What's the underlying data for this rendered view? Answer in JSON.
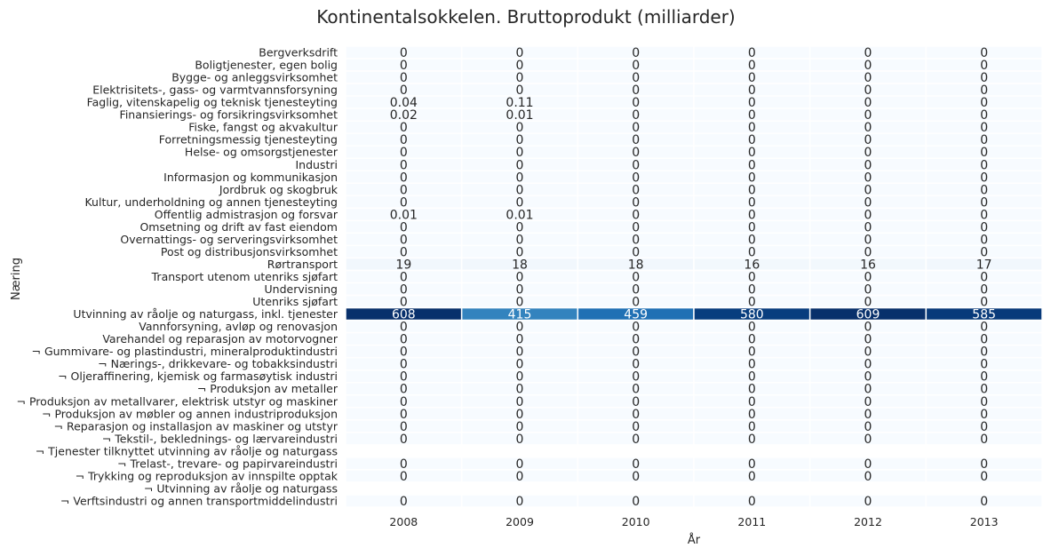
{
  "chart_data": {
    "type": "heatmap",
    "title": "Kontinentalsokkelen. Bruttoprodukt (milliarder)",
    "xlabel": "År",
    "ylabel": "Næring",
    "columns": [
      "2008",
      "2009",
      "2010",
      "2011",
      "2012",
      "2013"
    ],
    "rows": [
      {
        "label": "Bergverksdrift",
        "values": [
          "0",
          "0",
          "0",
          "0",
          "0",
          "0"
        ]
      },
      {
        "label": "Boligtjenester, egen bolig",
        "values": [
          "0",
          "0",
          "0",
          "0",
          "0",
          "0"
        ]
      },
      {
        "label": "Bygge- og anleggsvirksomhet",
        "values": [
          "0",
          "0",
          "0",
          "0",
          "0",
          "0"
        ]
      },
      {
        "label": "Elektrisitets-, gass- og varmtvannsforsyning",
        "values": [
          "0",
          "0",
          "0",
          "0",
          "0",
          "0"
        ]
      },
      {
        "label": "Faglig, vitenskapelig og teknisk tjenesteyting",
        "values": [
          "0.04",
          "0.11",
          "0",
          "0",
          "0",
          "0"
        ]
      },
      {
        "label": "Finansierings- og forsikringsvirksomhet",
        "values": [
          "0.02",
          "0.01",
          "0",
          "0",
          "0",
          "0"
        ]
      },
      {
        "label": "Fiske, fangst og akvakultur",
        "values": [
          "0",
          "0",
          "0",
          "0",
          "0",
          "0"
        ]
      },
      {
        "label": "Forretningsmessig tjenesteyting",
        "values": [
          "0",
          "0",
          "0",
          "0",
          "0",
          "0"
        ]
      },
      {
        "label": "Helse- og omsorgstjenester",
        "values": [
          "0",
          "0",
          "0",
          "0",
          "0",
          "0"
        ]
      },
      {
        "label": "Industri",
        "values": [
          "0",
          "0",
          "0",
          "0",
          "0",
          "0"
        ]
      },
      {
        "label": "Informasjon og kommunikasjon",
        "values": [
          "0",
          "0",
          "0",
          "0",
          "0",
          "0"
        ]
      },
      {
        "label": "Jordbruk og skogbruk",
        "values": [
          "0",
          "0",
          "0",
          "0",
          "0",
          "0"
        ]
      },
      {
        "label": "Kultur, underholdning og annen tjenesteyting",
        "values": [
          "0",
          "0",
          "0",
          "0",
          "0",
          "0"
        ]
      },
      {
        "label": "Offentlig admistrasjon og forsvar",
        "values": [
          "0.01",
          "0.01",
          "0",
          "0",
          "0",
          "0"
        ]
      },
      {
        "label": "Omsetning og drift av fast eiendom",
        "values": [
          "0",
          "0",
          "0",
          "0",
          "0",
          "0"
        ]
      },
      {
        "label": "Overnattings- og serveringsvirksomhet",
        "values": [
          "0",
          "0",
          "0",
          "0",
          "0",
          "0"
        ]
      },
      {
        "label": "Post og distribusjonsvirksomhet",
        "values": [
          "0",
          "0",
          "0",
          "0",
          "0",
          "0"
        ]
      },
      {
        "label": "Rørtransport",
        "values": [
          "19",
          "18",
          "18",
          "16",
          "16",
          "17"
        ]
      },
      {
        "label": "Transport utenom utenriks sjøfart",
        "values": [
          "0",
          "0",
          "0",
          "0",
          "0",
          "0"
        ]
      },
      {
        "label": "Undervisning",
        "values": [
          "0",
          "0",
          "0",
          "0",
          "0",
          "0"
        ]
      },
      {
        "label": "Utenriks sjøfart",
        "values": [
          "0",
          "0",
          "0",
          "0",
          "0",
          "0"
        ]
      },
      {
        "label": "Utvinning av råolje og naturgass, inkl. tjenester",
        "values": [
          "608",
          "415",
          "459",
          "580",
          "609",
          "585"
        ]
      },
      {
        "label": "Vannforsyning, avløp og renovasjon",
        "values": [
          "0",
          "0",
          "0",
          "0",
          "0",
          "0"
        ]
      },
      {
        "label": "Varehandel og reparasjon av motorvogner",
        "values": [
          "0",
          "0",
          "0",
          "0",
          "0",
          "0"
        ]
      },
      {
        "label": "¬ Gummivare- og plastindustri, mineralproduktindustri",
        "values": [
          "0",
          "0",
          "0",
          "0",
          "0",
          "0"
        ]
      },
      {
        "label": "¬ Nærings-, drikkevare- og tobakksindustri",
        "values": [
          "0",
          "0",
          "0",
          "0",
          "0",
          "0"
        ]
      },
      {
        "label": "¬ Oljeraffinering, kjemisk og farmasøytisk industri",
        "values": [
          "0",
          "0",
          "0",
          "0",
          "0",
          "0"
        ]
      },
      {
        "label": "¬ Produksjon av metaller",
        "values": [
          "0",
          "0",
          "0",
          "0",
          "0",
          "0"
        ]
      },
      {
        "label": "¬ Produksjon av metallvarer, elektrisk utstyr og maskiner",
        "values": [
          "0",
          "0",
          "0",
          "0",
          "0",
          "0"
        ]
      },
      {
        "label": "¬ Produksjon av møbler og annen industriproduksjon",
        "values": [
          "0",
          "0",
          "0",
          "0",
          "0",
          "0"
        ]
      },
      {
        "label": "¬ Reparasjon og installasjon av maskiner og utstyr",
        "values": [
          "0",
          "0",
          "0",
          "0",
          "0",
          "0"
        ]
      },
      {
        "label": "¬ Tekstil-, beklednings- og lærvareindustri",
        "values": [
          "0",
          "0",
          "0",
          "0",
          "0",
          "0"
        ]
      },
      {
        "label": "¬ Tjenester tilknyttet utvinning av råolje og naturgass",
        "values": [
          null,
          null,
          null,
          null,
          null,
          null
        ]
      },
      {
        "label": "¬ Trelast-, trevare- og papirvareindustri",
        "values": [
          "0",
          "0",
          "0",
          "0",
          "0",
          "0"
        ]
      },
      {
        "label": "¬ Trykking og reproduksjon av innspilte opptak",
        "values": [
          "0",
          "0",
          "0",
          "0",
          "0",
          "0"
        ]
      },
      {
        "label": "¬ Utvinning av råolje og naturgass",
        "values": [
          null,
          null,
          null,
          null,
          null,
          null
        ]
      },
      {
        "label": "¬ Verftsindustri og annen transportmiddelindustri",
        "values": [
          "0",
          "0",
          "0",
          "0",
          "0",
          "0"
        ]
      }
    ],
    "colormap": "Blues",
    "vmin": 0,
    "vmax": 609,
    "grid": false,
    "colorbar": false
  }
}
